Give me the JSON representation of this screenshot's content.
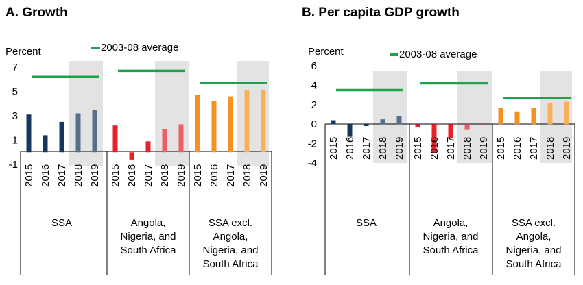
{
  "colors": {
    "ssa": "#17375E",
    "big3": "#E8202A",
    "rest": "#F5911E",
    "forecast_shade": "#E3E3E3",
    "average_line": "#1FA34A",
    "axis": "#000000"
  },
  "legend": {
    "label": "2003-08 average"
  },
  "groups": [
    {
      "name": "SSA",
      "lines": [
        "SSA"
      ]
    },
    {
      "name": "Angola, Nigeria, and South Africa",
      "lines": [
        "Angola,",
        "Nigeria, and",
        "South Africa"
      ]
    },
    {
      "name": "SSA excl. Angola, Nigeria, and South Africa",
      "lines": [
        "SSA excl.",
        "Angola,",
        "Nigeria, and",
        "South Africa"
      ]
    }
  ],
  "chart_data": [
    {
      "type": "bar",
      "title": "A. Growth",
      "ylabel": "Percent",
      "ylim": [
        -1,
        7
      ],
      "yticks": [
        "7",
        "5",
        "3",
        "1",
        "-1"
      ],
      "categories": [
        "2015",
        "2016",
        "2017",
        "2018",
        "2019"
      ],
      "forecast_categories": [
        "2018",
        "2019"
      ],
      "series": [
        {
          "group": "SSA",
          "values": [
            3.1,
            1.4,
            2.5,
            3.2,
            3.5
          ],
          "average": 6.2
        },
        {
          "group": "Angola, Nigeria, and South Africa",
          "values": [
            2.2,
            -0.6,
            0.9,
            1.9,
            2.3
          ],
          "average": 6.7
        },
        {
          "group": "SSA excl. Angola, Nigeria, and South Africa",
          "values": [
            4.7,
            4.2,
            4.6,
            5.1,
            5.1
          ],
          "average": 5.7
        }
      ]
    },
    {
      "type": "bar",
      "title": "B. Per capita GDP growth",
      "ylabel": "Percent",
      "ylim": [
        -4,
        6
      ],
      "yticks": [
        "6",
        "4",
        "2",
        "0",
        "-2",
        "-4"
      ],
      "categories": [
        "2015",
        "2016",
        "2017",
        "2018",
        "2019"
      ],
      "forecast_categories": [
        "2018",
        "2019"
      ],
      "series": [
        {
          "group": "SSA",
          "values": [
            0.4,
            -1.3,
            -0.2,
            0.5,
            0.8
          ],
          "average": 3.5
        },
        {
          "group": "Angola, Nigeria, and South Africa",
          "values": [
            -0.3,
            -3.0,
            -1.4,
            -0.6,
            -0.1
          ],
          "average": 4.2
        },
        {
          "group": "SSA excl. Angola, Nigeria, and South Africa",
          "values": [
            1.7,
            1.3,
            1.7,
            2.2,
            2.3
          ],
          "average": 2.7
        }
      ]
    }
  ]
}
